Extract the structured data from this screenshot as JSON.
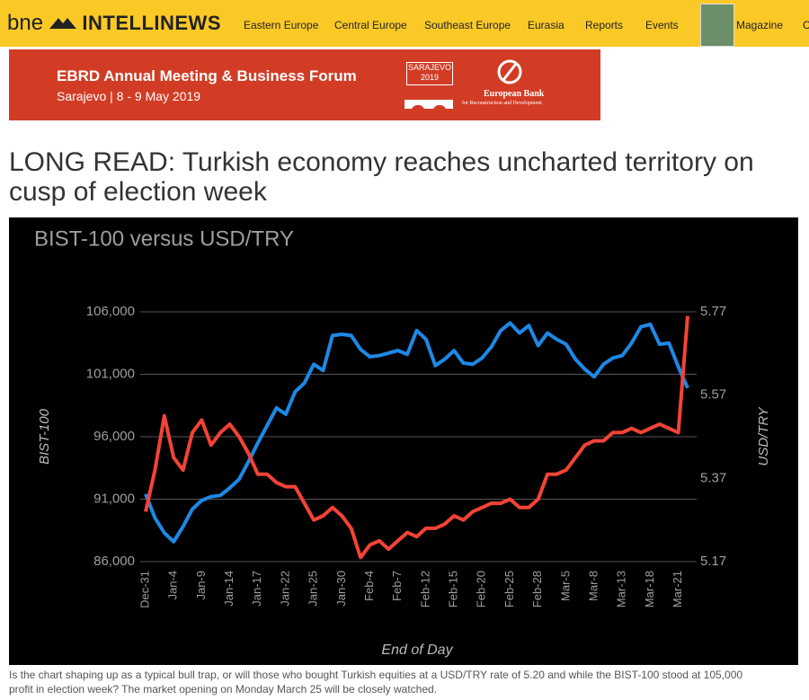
{
  "header": {
    "logo": [
      "bne",
      "INTELLINEWS"
    ],
    "nav": [
      "Eastern Europe",
      "Central Europe",
      "Southeast Europe",
      "Eurasia",
      "Reports",
      "Events",
      "Magazine",
      "C"
    ]
  },
  "banner": {
    "title": "EBRD Annual Meeting & Business Forum",
    "subtitle": "Sarajevo | 8 - 9 May 2019",
    "badge": [
      "SARAJEVO",
      "2019"
    ],
    "bank": [
      "European Bank",
      "for Reconstruction and Development"
    ]
  },
  "article": {
    "title": "LONG READ: Turkish economy reaches uncharted territory on cusp of election week",
    "caption": [
      "Is the chart shaping up as a typical bull trap, or will those who bought Turkish equities at a USD/TRY rate of 5.20 and while the BIST-100 stood at 105,000",
      "profit in election week? The market opening on Monday March 25 will be closely watched."
    ]
  },
  "chart_data": {
    "type": "line",
    "title": "BIST-100 versus USD/TRY",
    "x_label": "End of Day",
    "y_label": "BIST-100",
    "y2_label": "USD/TRY",
    "categories": [
      "Dec-31",
      null,
      null,
      "Jan-4",
      null,
      null,
      "Jan-9",
      null,
      null,
      "Jan-14",
      null,
      null,
      "Jan-17",
      null,
      null,
      "Jan-22",
      null,
      null,
      "Jan-25",
      null,
      null,
      "Jan-30",
      null,
      null,
      "Feb-4",
      null,
      null,
      "Feb-7",
      null,
      null,
      "Feb-12",
      null,
      null,
      "Feb-15",
      null,
      null,
      "Feb-20",
      null,
      null,
      "Feb-25",
      null,
      null,
      "Feb-28",
      null,
      null,
      "Mar-5",
      null,
      null,
      "Mar-8",
      null,
      null,
      "Mar-13",
      null,
      null,
      "Mar-18",
      null,
      null,
      "Mar-21",
      null
    ],
    "series": [
      {
        "color": "#1e88e5",
        "values": [
          91400,
          89500,
          88300,
          87600,
          88800,
          90200,
          90900,
          91200,
          91300,
          91900,
          92600,
          94000,
          95500,
          96900,
          98300,
          97800,
          99600,
          100300,
          101800,
          101300,
          104100,
          104200,
          104100,
          103000,
          102400,
          102500,
          102700,
          102900,
          102600,
          104500,
          103800,
          101700,
          102200,
          102900,
          101900,
          101800,
          102300,
          103200,
          104500,
          105100,
          104300,
          104900,
          103300,
          104300,
          103800,
          103400,
          102200,
          101400,
          100800,
          101800,
          102300,
          102500,
          103500,
          104800,
          105000,
          103400,
          103500,
          101600,
          99900
        ]
      },
      {
        "color": "#f44336",
        "axis": "y2",
        "values": [
          5.29,
          5.39,
          5.52,
          5.42,
          5.39,
          5.48,
          5.51,
          5.45,
          5.48,
          5.5,
          5.47,
          5.43,
          5.38,
          5.38,
          5.36,
          5.35,
          5.35,
          5.31,
          5.27,
          5.28,
          5.3,
          5.28,
          5.25,
          5.18,
          5.21,
          5.22,
          5.2,
          5.22,
          5.24,
          5.23,
          5.25,
          5.25,
          5.26,
          5.28,
          5.27,
          5.29,
          5.3,
          5.31,
          5.31,
          5.32,
          5.3,
          5.3,
          5.32,
          5.38,
          5.38,
          5.39,
          5.42,
          5.45,
          5.46,
          5.46,
          5.48,
          5.48,
          5.49,
          5.48,
          5.49,
          5.5,
          5.49,
          5.48,
          5.76
        ]
      }
    ],
    "ylim": [
      86000,
      106000
    ],
    "yticks": [
      {
        "value": 86000,
        "label": "86,000"
      },
      {
        "value": 91000,
        "label": "91,000"
      },
      {
        "value": 96000,
        "label": "96,000"
      },
      {
        "value": 101000,
        "label": "101,000"
      },
      {
        "value": 106000,
        "label": "106,000"
      }
    ],
    "y2lim": [
      5.17,
      5.77
    ],
    "y2ticks": [
      5.17,
      5.37,
      5.57,
      5.77
    ],
    "grid": true
  }
}
